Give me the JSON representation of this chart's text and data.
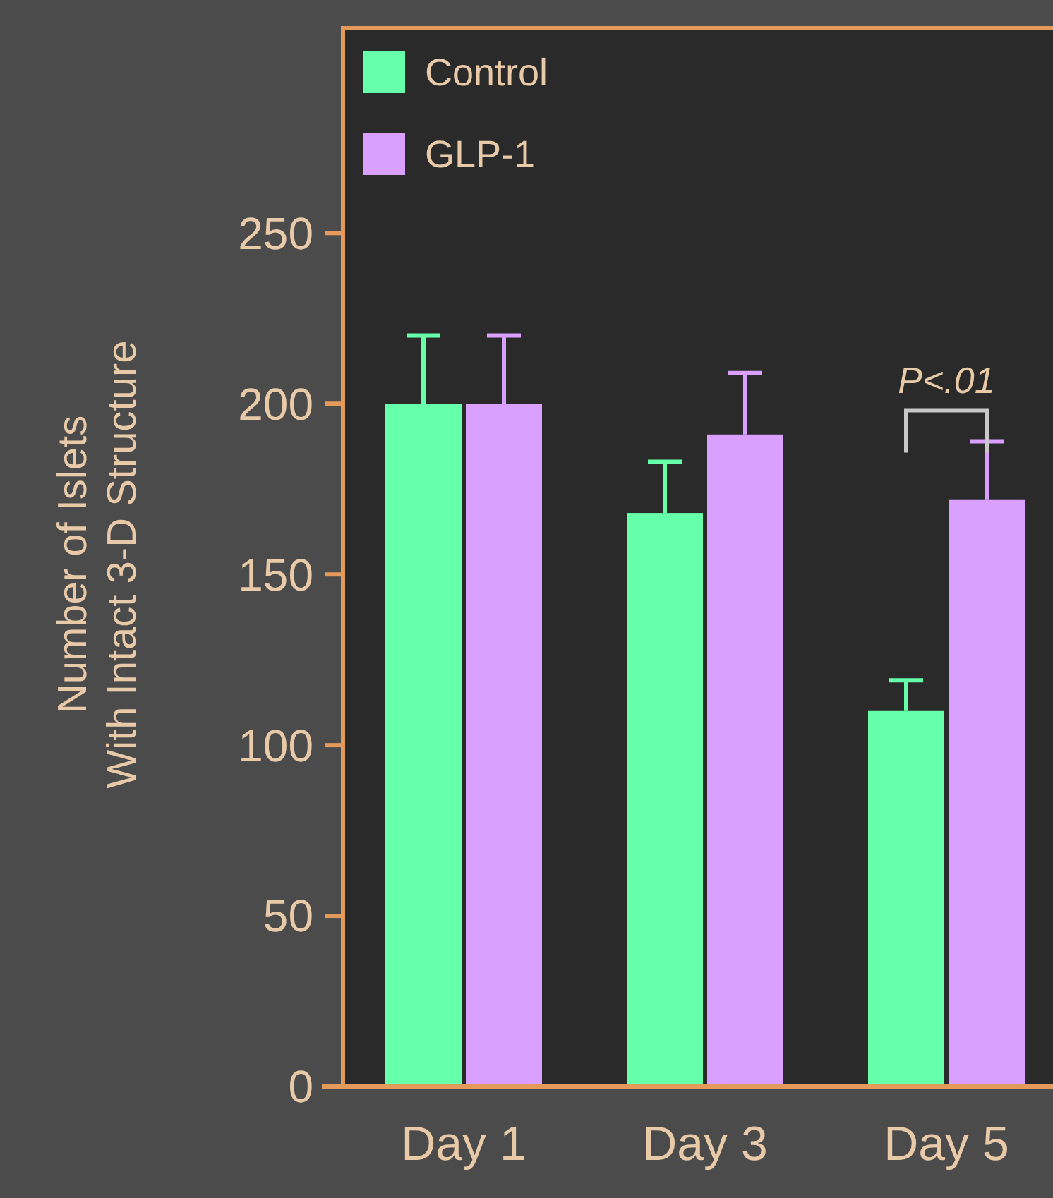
{
  "chart_data": {
    "type": "bar",
    "ylabel": "Number of Islets\nWith Intact 3-D Structure",
    "categories": [
      "Day 1",
      "Day 3",
      "Day 5"
    ],
    "series": [
      {
        "name": "Control",
        "color": "#66ffaa",
        "values": [
          200,
          168,
          110
        ],
        "errors": [
          [
            200,
            220
          ],
          [
            168,
            183
          ],
          [
            110,
            119
          ]
        ]
      },
      {
        "name": "GLP-1",
        "color": "#d9a0ff",
        "values": [
          200,
          191,
          172
        ],
        "errors": [
          [
            200,
            220
          ],
          [
            191,
            209
          ],
          [
            172,
            189
          ]
        ]
      }
    ],
    "ylim": [
      0,
      310
    ],
    "yticks": [
      0,
      50,
      100,
      150,
      200,
      250
    ],
    "legend": "top left",
    "annotations": [
      "P<.01"
    ]
  }
}
